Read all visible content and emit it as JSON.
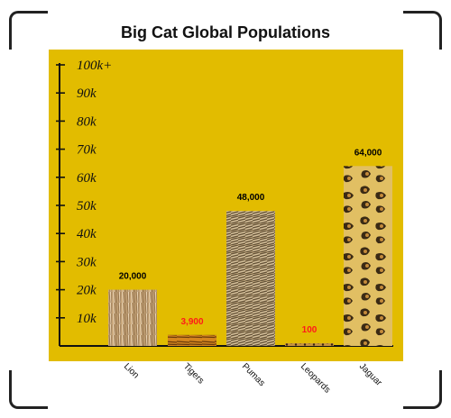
{
  "chart_data": {
    "type": "bar",
    "title": "Big Cat Global Populations",
    "categories": [
      "Lion",
      "Tigers",
      "Pumas",
      "Leopards",
      "Jaguar"
    ],
    "values": [
      20000,
      3900,
      48000,
      100,
      64000
    ],
    "value_labels": [
      "20,000",
      "3,900",
      "48,000",
      "100",
      "64,000"
    ],
    "value_label_colors": [
      "#000000",
      "#ff1a1a",
      "#000000",
      "#ff1a1a",
      "#000000"
    ],
    "bar_textures": [
      "lion-fur",
      "tiger-fur",
      "puma-fur",
      "leopard-fur",
      "jaguar-spots"
    ],
    "ylim": [
      0,
      100000
    ],
    "yticks": [
      10000,
      20000,
      30000,
      40000,
      50000,
      60000,
      70000,
      80000,
      90000,
      100000
    ],
    "ytick_labels": [
      "10k",
      "20k",
      "30k",
      "40k",
      "50k",
      "60k",
      "70k",
      "80k",
      "90k",
      "100k+"
    ],
    "xlabel": "",
    "ylabel": "",
    "grid": false,
    "plot_background": "#e2bc00"
  }
}
